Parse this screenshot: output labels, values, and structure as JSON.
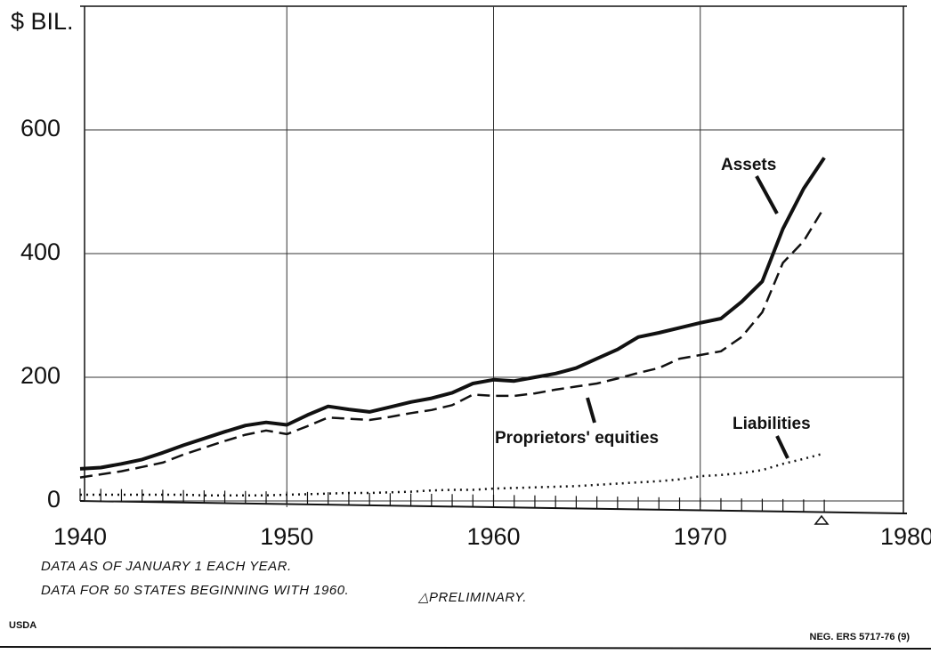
{
  "chart_data": {
    "type": "line",
    "y_label": "$ BIL.",
    "x": [
      1940,
      1941,
      1942,
      1943,
      1944,
      1945,
      1946,
      1947,
      1948,
      1949,
      1950,
      1951,
      1952,
      1953,
      1954,
      1955,
      1956,
      1957,
      1958,
      1959,
      1960,
      1961,
      1962,
      1963,
      1964,
      1965,
      1966,
      1967,
      1968,
      1969,
      1970,
      1971,
      1972,
      1973,
      1974,
      1975,
      1976
    ],
    "series": [
      {
        "name": "Assets",
        "color": "#111111",
        "style": "solid",
        "values": [
          52,
          54,
          60,
          67,
          78,
          90,
          101,
          112,
          122,
          127,
          123,
          139,
          153,
          148,
          144,
          152,
          160,
          166,
          175,
          190,
          196,
          194,
          200,
          206,
          215,
          230,
          245,
          265,
          272,
          280,
          288,
          295,
          322,
          355,
          440,
          505,
          555
        ]
      },
      {
        "name": "Proprietors' equities",
        "color": "#111111",
        "style": "dashed",
        "values": [
          38,
          43,
          48,
          55,
          62,
          75,
          86,
          97,
          107,
          114,
          108,
          121,
          135,
          133,
          131,
          136,
          142,
          147,
          155,
          172,
          170,
          170,
          174,
          180,
          185,
          190,
          198,
          207,
          215,
          230,
          236,
          242,
          265,
          305,
          385,
          420,
          475
        ]
      },
      {
        "name": "Liabilities",
        "color": "#111111",
        "style": "dotted",
        "values": [
          10,
          10,
          10,
          10,
          10,
          10,
          9,
          9,
          9,
          9,
          10,
          11,
          12,
          13,
          13,
          14,
          15,
          17,
          18,
          18,
          20,
          21,
          22,
          23,
          24,
          26,
          28,
          30,
          32,
          35,
          40,
          42,
          45,
          50,
          60,
          68,
          77
        ]
      }
    ],
    "xlim": [
      1940,
      1980
    ],
    "xticks": [
      1940,
      1950,
      1960,
      1970,
      1980
    ],
    "ylim": [
      0,
      800
    ],
    "yticks": [
      0,
      200,
      400,
      600
    ],
    "grid": true,
    "notes": [
      "DATA AS OF JANUARY 1 EACH YEAR.",
      "DATA FOR 50 STATES BEGINNING WITH 1960.",
      "△PRELIMINARY."
    ],
    "source": "USDA",
    "reference": "NEG. ERS 5717-76 (9)"
  }
}
